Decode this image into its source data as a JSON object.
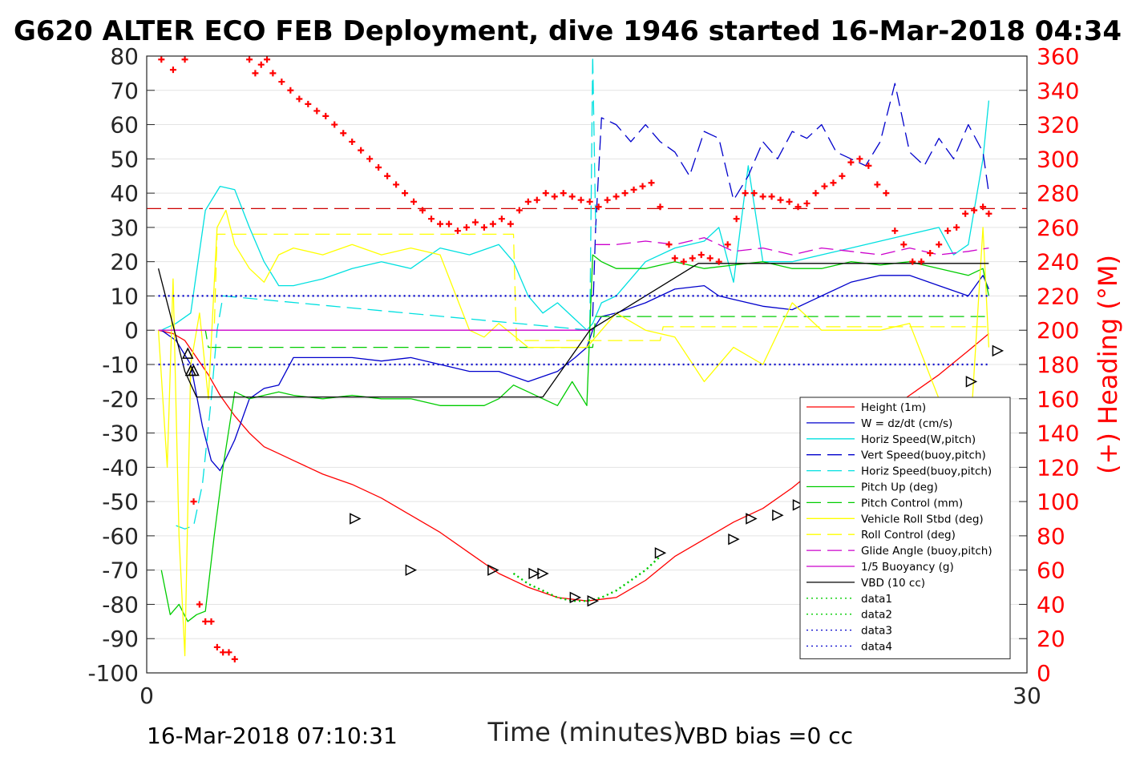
{
  "chart_data": {
    "type": "line",
    "title": "G620 ALTER ECO FEB Deployment, dive 1946 started 16-Mar-2018 04:34",
    "xlabel": "Time (minutes)",
    "ylabel_right": "(+) Heading (°M)",
    "xlim": [
      0,
      30
    ],
    "ylim_left": [
      -100,
      80
    ],
    "ylim_right": [
      0,
      360
    ],
    "x_ticks": [
      "0",
      "30"
    ],
    "y_ticks_left": [
      "80",
      "70",
      "60",
      "50",
      "40",
      "30",
      "20",
      "10",
      "0",
      "-10",
      "-20",
      "-30",
      "-40",
      "-50",
      "-60",
      "-70",
      "-80",
      "-90",
      "-100"
    ],
    "y_ticks_right": [
      "360",
      "340",
      "320",
      "300",
      "280",
      "260",
      "240",
      "220",
      "200",
      "180",
      "160",
      "140",
      "120",
      "100",
      "80",
      "60",
      "40",
      "20",
      "0"
    ],
    "grid": true,
    "legend_position": "lower-right",
    "footer_left": "16-Mar-2018 07:10:31",
    "footer_right": "VBD bias =0 cc",
    "series": [
      {
        "name": "Height (1m)",
        "color": "#ff0000",
        "style": "solid",
        "x": [
          0.4,
          0.9,
          1.3,
          1.7,
          2.1,
          2.5,
          3.0,
          3.5,
          4.0,
          4.5,
          5.0,
          6.0,
          7.0,
          8.0,
          9.0,
          10.0,
          11.0,
          12.0,
          13.0,
          14.0,
          15.0,
          16.0,
          17.0,
          18.0,
          19.0,
          20.0,
          21.0,
          22.0,
          23.0,
          24.0,
          25.0,
          26.0,
          27.0,
          28.0,
          28.7
        ],
        "y": [
          0,
          -1,
          -3,
          -8,
          -13,
          -19,
          -25,
          -30,
          -34,
          -36,
          -38,
          -42,
          -45,
          -49,
          -54,
          -59,
          -65,
          -71,
          -75,
          -78,
          -79,
          -78,
          -73,
          -66,
          -61,
          -56,
          -52,
          -46,
          -39,
          -31,
          -25,
          -19,
          -13,
          -6,
          -1
        ]
      },
      {
        "name": "W = dz/dt (cm/s)",
        "color": "#0000cc",
        "style": "solid",
        "x": [
          0.5,
          1.0,
          1.5,
          1.9,
          2.2,
          2.5,
          3.0,
          3.5,
          4.0,
          4.5,
          5.0,
          6.0,
          7.0,
          8.0,
          9.0,
          10.0,
          11.0,
          12.0,
          13.0,
          14.0,
          14.6,
          15.0,
          15.2,
          15.5,
          16.0,
          17.0,
          18.0,
          19.0,
          19.5,
          20.0,
          21.0,
          22.0,
          23.0,
          24.0,
          25.0,
          26.0,
          27.0,
          28.0,
          28.5,
          28.7
        ],
        "y": [
          0,
          -3,
          -10,
          -28,
          -38,
          -41,
          -32,
          -20,
          -17,
          -16,
          -8,
          -8,
          -8,
          -9,
          -8,
          -10,
          -12,
          -12,
          -15,
          -12,
          -8,
          -5,
          0,
          4,
          5,
          8,
          12,
          13,
          10,
          9,
          7,
          6,
          10,
          14,
          16,
          16,
          13,
          10,
          16,
          12
        ]
      },
      {
        "name": "Horiz Speed(W,pitch)",
        "color": "#00e0e0",
        "style": "solid",
        "x": [
          0.5,
          1.0,
          1.5,
          2.0,
          2.5,
          3.0,
          3.5,
          4.0,
          4.5,
          5.0,
          6.0,
          7.0,
          8.0,
          9.0,
          10.0,
          11.0,
          12.0,
          12.5,
          13.0,
          13.5,
          14.0,
          14.5,
          15.0,
          15.2,
          15.5,
          16.0,
          17.0,
          18.0,
          19.0,
          19.5,
          20.0,
          20.5,
          21.0,
          22.0,
          23.0,
          24.0,
          25.0,
          26.0,
          27.0,
          27.5,
          28.0,
          28.5,
          28.7
        ],
        "y": [
          0,
          2,
          5,
          35,
          42,
          41,
          30,
          20,
          13,
          13,
          15,
          18,
          20,
          18,
          24,
          22,
          25,
          20,
          10,
          5,
          8,
          4,
          0,
          2,
          8,
          10,
          20,
          24,
          26,
          30,
          14,
          48,
          20,
          20,
          22,
          24,
          26,
          28,
          30,
          22,
          25,
          50,
          67
        ]
      },
      {
        "name": "Vert Speed(buoy,pitch)",
        "color": "#0000cc",
        "style": "dashed",
        "x": [
          15.2,
          15.3,
          15.5,
          16.0,
          16.5,
          17.0,
          17.5,
          18.0,
          18.5,
          19.0,
          19.5,
          20.0,
          20.5,
          21.0,
          21.5,
          22.0,
          22.5,
          23.0,
          23.5,
          24.0,
          24.5,
          25.0,
          25.5,
          26.0,
          26.5,
          27.0,
          27.5,
          28.0,
          28.5,
          28.7
        ],
        "y": [
          4,
          30,
          62,
          60,
          55,
          60,
          55,
          52,
          45,
          58,
          56,
          38,
          45,
          55,
          50,
          58,
          56,
          60,
          52,
          50,
          48,
          55,
          72,
          52,
          48,
          56,
          50,
          60,
          52,
          40
        ]
      },
      {
        "name": "Horiz Speed(buoy,pitch)",
        "color": "#00e0e0",
        "style": "dashed",
        "x": [
          1.0,
          1.3,
          1.6,
          1.9,
          2.2,
          2.4,
          2.6,
          15.1,
          15.2,
          15.3
        ],
        "y": [
          -57,
          -58,
          -57,
          -45,
          -20,
          0,
          10,
          0,
          80,
          30
        ]
      },
      {
        "name": "Pitch Up (deg)",
        "color": "#00cc00",
        "style": "solid",
        "x": [
          0.5,
          0.8,
          1.1,
          1.4,
          1.7,
          2.0,
          2.3,
          2.6,
          3.0,
          3.5,
          4.0,
          4.5,
          5.0,
          6.0,
          7.0,
          8.0,
          9.0,
          10.0,
          11.0,
          11.5,
          12.0,
          12.5,
          13.0,
          13.5,
          14.0,
          14.5,
          15.0,
          15.1,
          15.2,
          15.5,
          16.0,
          17.0,
          18.0,
          19.0,
          20.0,
          21.0,
          22.0,
          23.0,
          24.0,
          25.0,
          26.0,
          27.0,
          28.0,
          28.5,
          28.7
        ],
        "y": [
          -70,
          -83,
          -80,
          -85,
          -83,
          -82,
          -60,
          -40,
          -18,
          -20,
          -19,
          -18,
          -19,
          -20,
          -19,
          -20,
          -20,
          -22,
          -22,
          -22,
          -20,
          -16,
          -18,
          -20,
          -22,
          -15,
          -22,
          0,
          22,
          20,
          18,
          18,
          20,
          18,
          19,
          20,
          18,
          18,
          20,
          19,
          20,
          18,
          16,
          18,
          10
        ]
      },
      {
        "name": "Pitch Control (mm)",
        "color": "#00cc00",
        "style": "dashed",
        "x": [
          0.4,
          2.0,
          2.1,
          15.2,
          15.3,
          28.7
        ],
        "y": [
          0,
          0,
          -5,
          -5,
          4,
          4
        ]
      },
      {
        "name": "Vehicle Roll Stbd (deg)",
        "color": "#ffff00",
        "style": "solid",
        "x": [
          0.4,
          0.7,
          0.9,
          1.1,
          1.3,
          1.5,
          1.8,
          2.1,
          2.4,
          2.7,
          3.0,
          3.5,
          4.0,
          4.5,
          5.0,
          6.0,
          7.0,
          8.0,
          9.0,
          10.0,
          11.0,
          11.5,
          12.0,
          13.0,
          14.0,
          15.0,
          15.5,
          16.0,
          17.0,
          18.0,
          19.0,
          20.0,
          21.0,
          22.0,
          23.0,
          24.0,
          25.0,
          26.0,
          27.0,
          28.0,
          28.5,
          28.7
        ],
        "y": [
          0,
          -40,
          15,
          -60,
          -95,
          -10,
          5,
          -20,
          30,
          35,
          25,
          18,
          14,
          22,
          24,
          22,
          25,
          22,
          24,
          22,
          0,
          -2,
          2,
          -5,
          -5,
          -5,
          0,
          5,
          0,
          -2,
          -15,
          -5,
          -10,
          8,
          0,
          0,
          0,
          2,
          -20,
          -40,
          30,
          -5
        ]
      },
      {
        "name": "Roll Control (deg)",
        "color": "#ffff00",
        "style": "dashed",
        "x": [
          0.4,
          2.3,
          2.4,
          12.5,
          12.6,
          17.5,
          17.6,
          28.7
        ],
        "y": [
          0,
          0,
          28,
          28,
          -3,
          -3,
          1,
          1
        ]
      },
      {
        "name": "Glide Angle (buoy,pitch)",
        "color": "#cc00cc",
        "style": "dashed",
        "x": [
          15.3,
          16.0,
          17.0,
          18.0,
          19.0,
          20.0,
          21.0,
          22.0,
          23.0,
          24.0,
          25.0,
          26.0,
          27.0,
          28.0,
          28.7
        ],
        "y": [
          25,
          25,
          26,
          25,
          27,
          23,
          24,
          22,
          24,
          23,
          22,
          24,
          22,
          23,
          24
        ]
      },
      {
        "name": "1/5 Buoyancy (g)",
        "color": "#cc00cc",
        "style": "solid",
        "x": [
          0.4,
          0.8,
          1.2,
          1.6,
          2.0,
          2.3,
          2.6,
          15.0,
          15.2
        ],
        "y": [
          0,
          0,
          0,
          0,
          0,
          0,
          0,
          0,
          0
        ]
      },
      {
        "name": "VBD (10 cc)",
        "color": "#000000",
        "style": "solid",
        "x": [
          0.4,
          1.3,
          1.7,
          13.5,
          15.1,
          18.8,
          28.7
        ],
        "y": [
          18,
          -12,
          -19.5,
          -19.5,
          0,
          19.5,
          19.5
        ]
      },
      {
        "name": "data1",
        "color": "#00cc00",
        "style": "dotted",
        "x": [
          12.5,
          13.0,
          13.5,
          14.0,
          14.5,
          15.0,
          15.5,
          16.0,
          16.5,
          17.0,
          17.5
        ],
        "y": [
          -71,
          -74,
          -76,
          -78,
          -79,
          -79,
          -78,
          -76,
          -73,
          -70,
          -66
        ]
      },
      {
        "name": "data2",
        "color": "#00cc00",
        "style": "dotted",
        "x": [
          12.5,
          13.0,
          13.5,
          14.0,
          14.5,
          15.0,
          15.5,
          16.0,
          16.5,
          17.0,
          17.5
        ],
        "y": [
          -71,
          -74,
          -76,
          -78,
          -79,
          -79,
          -78,
          -76,
          -73,
          -70,
          -66
        ]
      },
      {
        "name": "data3",
        "color": "#0000cc",
        "style": "dotted",
        "x": [
          0.4,
          28.7
        ],
        "y": [
          10,
          10
        ]
      },
      {
        "name": "data4",
        "color": "#0000cc",
        "style": "dotted",
        "x": [
          0.4,
          28.7
        ],
        "y": [
          -10,
          -10
        ]
      }
    ],
    "heading_series": {
      "axis": "right",
      "marker": "plus",
      "color": "#ff0000",
      "x": [
        0.5,
        0.9,
        1.3,
        1.6,
        1.8,
        2.0,
        2.2,
        2.4,
        2.6,
        2.8,
        3.0,
        3.5,
        3.7,
        3.9,
        4.1,
        4.3,
        4.6,
        4.9,
        5.2,
        5.5,
        5.8,
        6.1,
        6.4,
        6.7,
        7.0,
        7.3,
        7.6,
        7.9,
        8.2,
        8.5,
        8.8,
        9.1,
        9.4,
        9.7,
        10.0,
        10.3,
        10.6,
        10.9,
        11.2,
        11.5,
        11.8,
        12.1,
        12.4,
        12.7,
        13.0,
        13.3,
        13.6,
        13.9,
        14.2,
        14.5,
        14.8,
        15.1,
        15.4,
        15.7,
        16.0,
        16.3,
        16.6,
        16.9,
        17.2,
        17.5,
        17.8,
        18.0,
        18.3,
        18.6,
        18.9,
        19.2,
        19.5,
        19.8,
        20.1,
        20.4,
        20.7,
        21.0,
        21.3,
        21.6,
        21.9,
        22.2,
        22.5,
        22.8,
        23.1,
        23.4,
        23.7,
        24.0,
        24.3,
        24.6,
        24.9,
        25.2,
        25.5,
        25.8,
        26.1,
        26.4,
        26.7,
        27.0,
        27.3,
        27.6,
        27.9,
        28.2,
        28.5,
        28.7
      ],
      "y": [
        358,
        352,
        358,
        100,
        40,
        30,
        30,
        15,
        12,
        12,
        8,
        358,
        350,
        355,
        358,
        350,
        345,
        340,
        335,
        332,
        328,
        325,
        320,
        315,
        310,
        305,
        300,
        295,
        290,
        285,
        280,
        275,
        270,
        265,
        262,
        262,
        258,
        260,
        263,
        260,
        262,
        265,
        262,
        270,
        275,
        276,
        280,
        278,
        280,
        278,
        276,
        275,
        272,
        276,
        278,
        280,
        282,
        284,
        286,
        272,
        250,
        242,
        240,
        242,
        244,
        242,
        240,
        250,
        265,
        280,
        280,
        278,
        278,
        276,
        275,
        272,
        274,
        280,
        284,
        286,
        290,
        298,
        300,
        296,
        285,
        280,
        258,
        250,
        240,
        240,
        245,
        250,
        258,
        260,
        268,
        270,
        272,
        268
      ]
    },
    "reference_lines": [
      {
        "axis": "right",
        "value": 271,
        "color": "#cc0000",
        "style": "dashed"
      }
    ],
    "markers_triangle_down": {
      "color": "#000000",
      "x": [
        1.4,
        1.5,
        1.6
      ],
      "y": [
        -7,
        -12,
        -12
      ]
    },
    "markers_triangle_left": {
      "color": "#000000",
      "x": [
        7.1,
        9.0,
        11.8,
        13.2,
        13.5,
        14.6,
        15.2,
        17.5,
        20.0,
        20.6,
        21.5,
        22.2,
        23.5,
        24.0,
        24.6,
        26.5,
        28.1,
        29.0
      ],
      "y": [
        -55,
        -70,
        -70,
        -71,
        -71,
        -78,
        -79,
        -65,
        -61,
        -55,
        -54,
        -51,
        -45,
        -40,
        -30,
        -21,
        -15,
        -6
      ]
    }
  }
}
